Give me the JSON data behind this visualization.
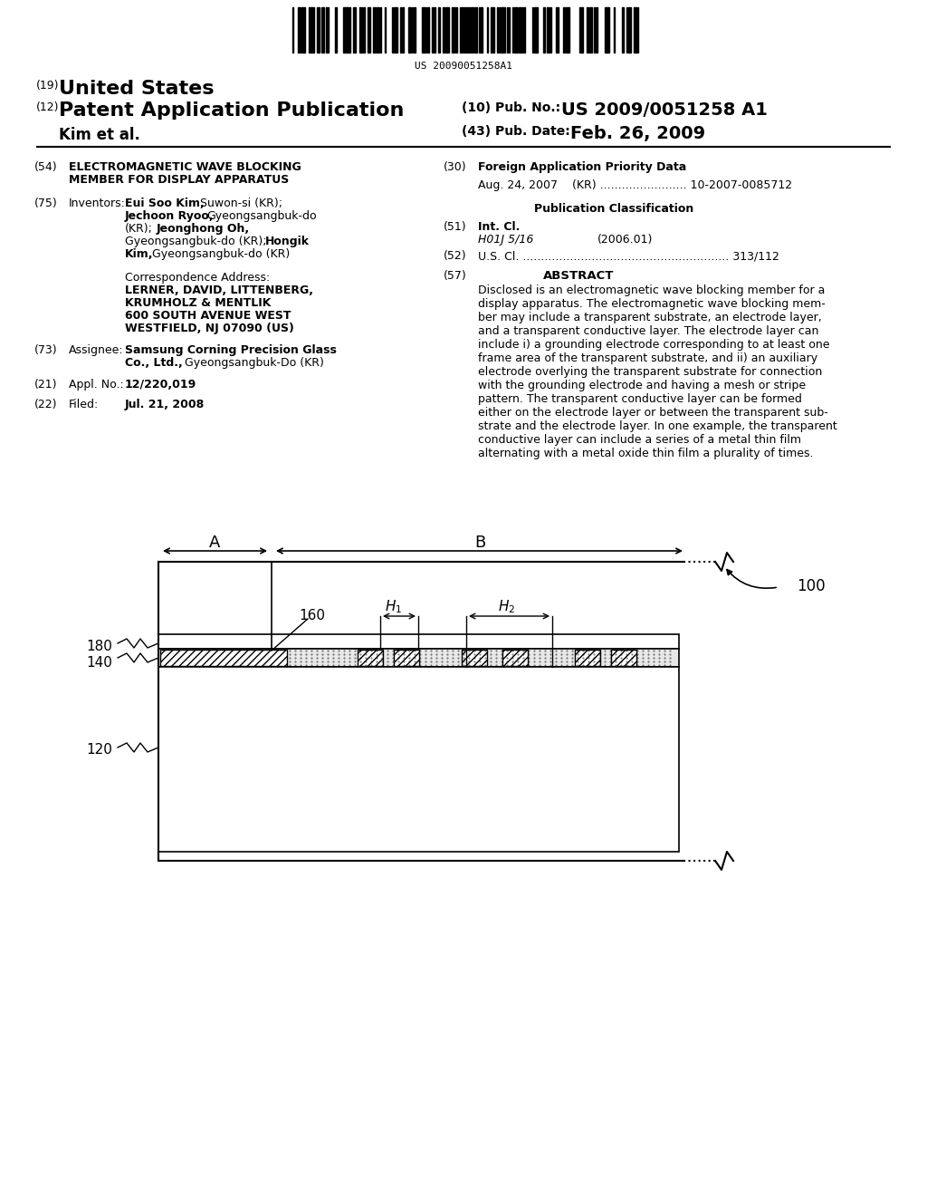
{
  "bg_color": "#ffffff",
  "barcode_text": "US 20090051258A1",
  "title_19": "(19)",
  "title_country": "United States",
  "title_12": "(12)",
  "title_pub": "Patent Application Publication",
  "title_author": "Kim et al.",
  "title_10": "(10) Pub. No.:",
  "title_pubno": "US 2009/0051258 A1",
  "title_43": "(43) Pub. Date:",
  "title_date": "Feb. 26, 2009",
  "field54_label": "(54)",
  "field54_text": "ELECTROMAGNETIC WAVE BLOCKING\nMEMBER FOR DISPLAY APPARATUS",
  "field30_label": "(30)",
  "field30_title": "Foreign Application Priority Data",
  "field30_data": "Aug. 24, 2007    (KR) ........................ 10-2007-0085712",
  "pub_class_title": "Publication Classification",
  "field51_label": "(51)",
  "field51_title": "Int. Cl.",
  "field51_class": "H01J 5/16",
  "field51_year": "(2006.01)",
  "field52_label": "(52)",
  "field52_text": "U.S. Cl. ......................................................... 313/112",
  "field57_label": "(57)",
  "field57_title": "ABSTRACT",
  "abstract_text": "Disclosed is an electromagnetic wave blocking member for a\ndisplay apparatus. The electromagnetic wave blocking mem-\nber may include a transparent substrate, an electrode layer,\nand a transparent conductive layer. The electrode layer can\ninclude i) a grounding electrode corresponding to at least one\nframe area of the transparent substrate, and ii) an auxiliary\nelectrode overlying the transparent substrate for connection\nwith the grounding electrode and having a mesh or stripe\npattern. The transparent conductive layer can be formed\neither on the electrode layer or between the transparent sub-\nstrate and the electrode layer. In one example, the transparent\nconductive layer can include a series of a metal thin film\nalternating with a metal oxide thin film a plurality of times.",
  "field75_label": "(75)",
  "field75_title": "Inventors:",
  "field75_text": "Eui Soo Kim, Suwon-si (KR);\nJechoon Ryoo, Gyeongsangbuk-do\n(KR); Jeonghong Oh,\nGyeongsangbuk-do (KR); Hongik\nKim, Gyeongsangbuk-do (KR)",
  "corr_title": "Correspondence Address:",
  "corr_text": "LERNER, DAVID, LITTENBERG,\nKRUMHOLZ & MENTLIK\n600 SOUTH AVENUE WEST\nWESTFIELD, NJ 07090 (US)",
  "field73_label": "(73)",
  "field73_title": "Assignee:",
  "field73_text": "Samsung Corning Precision Glass\nCo., Ltd., Gyeongsangbuk-Do (KR)",
  "field21_label": "(21)",
  "field21_title": "Appl. No.:",
  "field21_text": "12/220,019",
  "field22_label": "(22)",
  "field22_title": "Filed:",
  "field22_text": "Jul. 21, 2008"
}
